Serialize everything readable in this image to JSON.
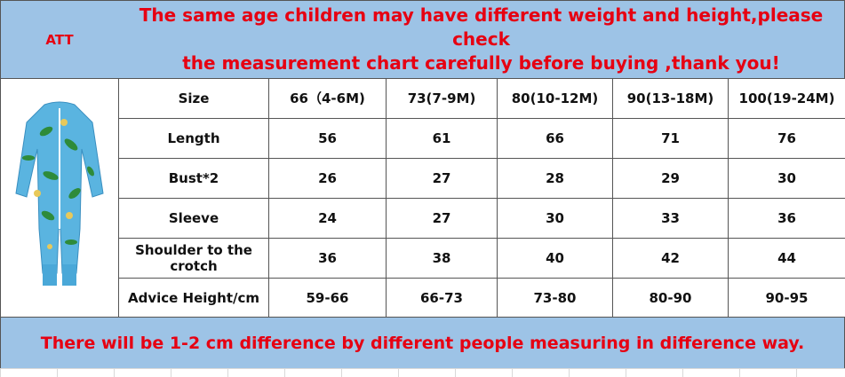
{
  "header": {
    "left": "ATT",
    "title_lines": [
      "The same age children may have different weight and height,please check",
      "the measurement chart carefully before buying ,thank you!"
    ]
  },
  "table": {
    "rows": [
      [
        "Size",
        "66（4-6M)",
        "73(7-9M)",
        "80(10-12M)",
        "90(13-18M)",
        "100(19-24M)"
      ],
      [
        "Length",
        "56",
        "61",
        "66",
        "71",
        "76"
      ],
      [
        "Bust*2",
        "26",
        "27",
        "28",
        "29",
        "30"
      ],
      [
        "Sleeve",
        "24",
        "27",
        "30",
        "33",
        "36"
      ],
      [
        "Shoulder to the crotch",
        "36",
        "38",
        "40",
        "42",
        "44"
      ],
      [
        "Advice Height/cm",
        "59-66",
        "66-73",
        "73-80",
        "80-90",
        "90-95"
      ]
    ]
  },
  "footer": {
    "note": "There will be 1-2 cm difference by different people measuring in difference way."
  }
}
